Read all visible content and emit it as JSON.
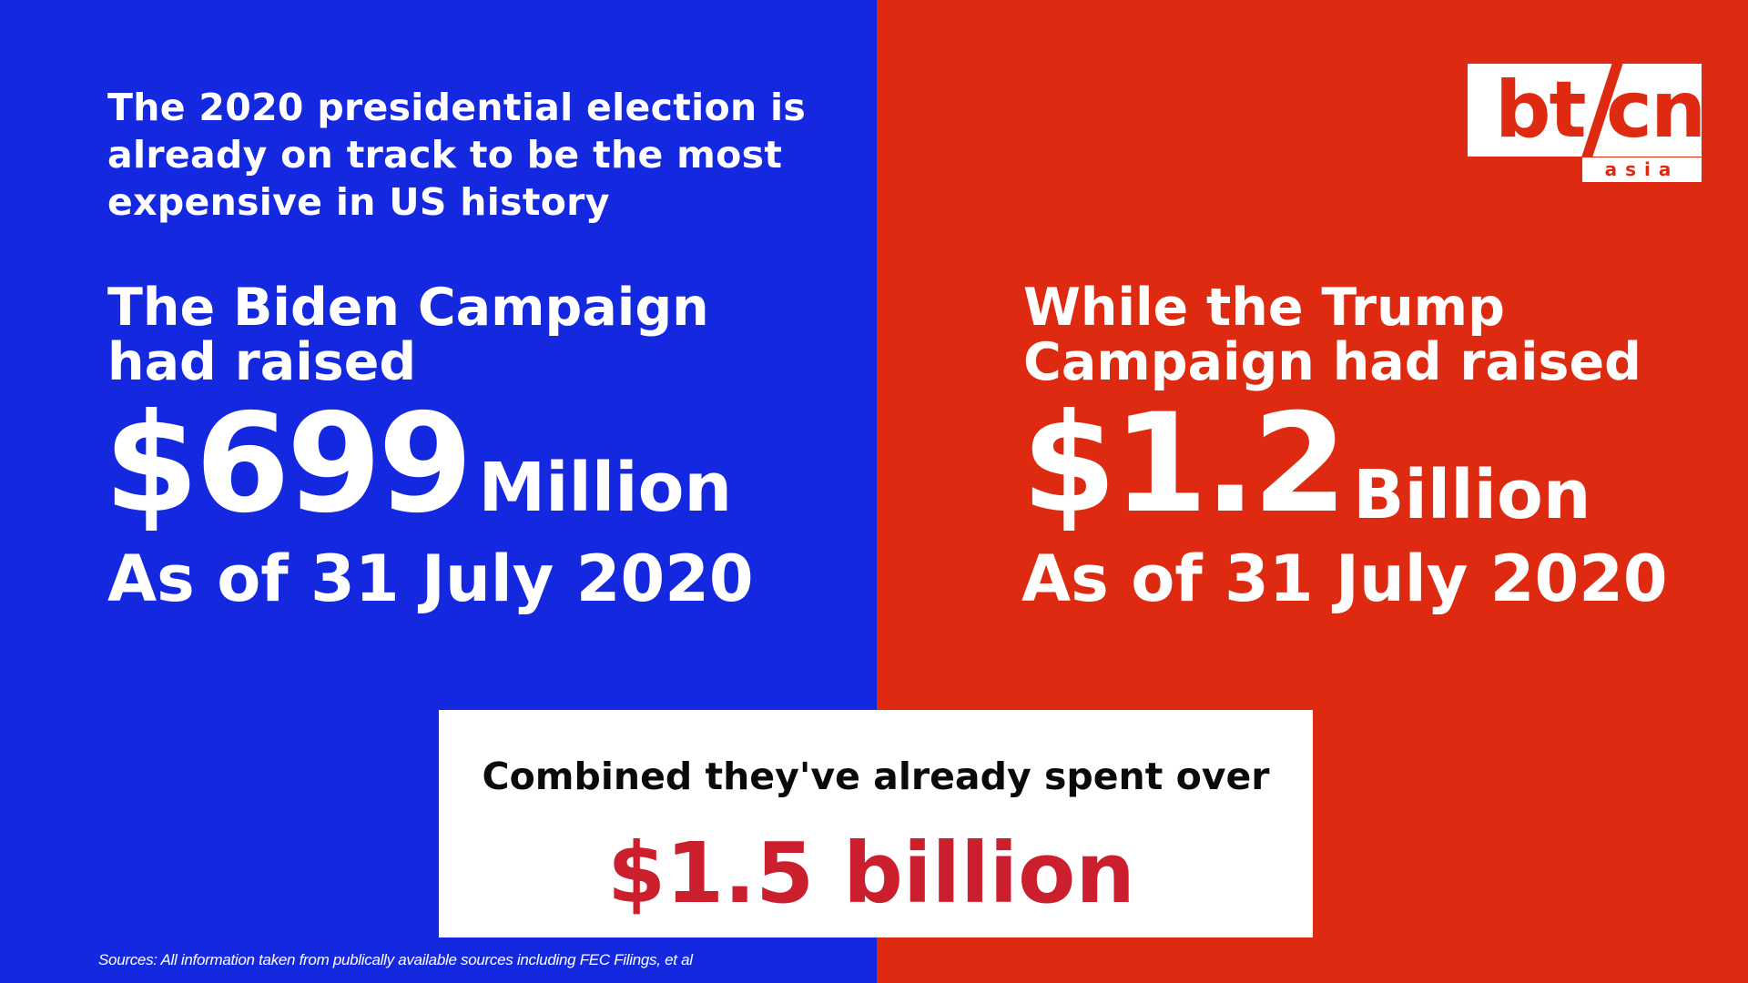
{
  "headline": {
    "lines": [
      "The 2020 presidential election is",
      "already on track to be the most",
      "expensive in US history"
    ]
  },
  "biden": {
    "intro_lines": [
      "The Biden Campaign",
      "had raised"
    ],
    "amount": "$699",
    "unit": "Million",
    "as_of": "As of 31 July 2020"
  },
  "trump": {
    "intro_lines": [
      "While the Trump",
      "Campaign had raised"
    ],
    "amount": "$1.2",
    "unit": "Billion",
    "as_of": "As of 31 July 2020"
  },
  "logo": {
    "left_text": "bt",
    "right_text": "cn",
    "sub_text": "asia"
  },
  "combined": {
    "text": "Combined they've already spent over",
    "amount": "$1.5 billion"
  },
  "sources": "Sources: All information taken from publically available sources including FEC Filings, et al",
  "colors": {
    "biden_panel": "#1428e0",
    "trump_panel": "#dd2a10",
    "highlight_amount": "#cc1f2d"
  }
}
